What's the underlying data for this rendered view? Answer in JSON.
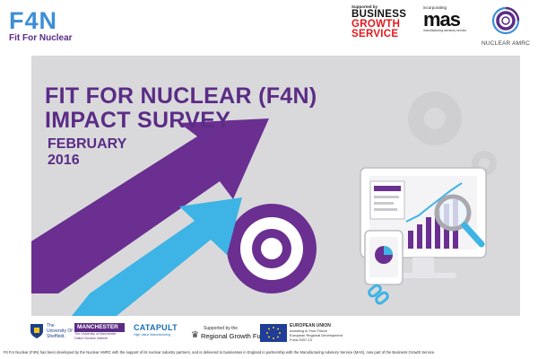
{
  "header": {
    "f4n_logo": {
      "mark": "F4N",
      "subtitle": "Fit For Nuclear"
    },
    "bgs_logo": {
      "supported_by": "Supported by",
      "line1": "BUSINESS",
      "line2": "GROWTH",
      "line3": "SERVICE"
    },
    "mas_logo": {
      "incorporating": "incorporating",
      "word": "mas",
      "tagline": "manufacturing advisory service"
    },
    "amrc_logo": {
      "text": "NUCLEAR AMRC",
      "icon": "target-ring-icon"
    }
  },
  "banner": {
    "title_line1": "FIT FOR NUCLEAR (F4N)",
    "title_line2": "IMPACT SURVEY",
    "date_line1": "FEBRUARY",
    "date_line2": "2016",
    "colors": {
      "purple": "#5b2c86",
      "blue": "#3db4e5",
      "background": "#d9d9db"
    }
  },
  "partners": {
    "sheffield": "The University Of Sheffield.",
    "manchester": "MANCHESTER",
    "manchester_sub": "The University of Manchester Dalton Nuclear Institute",
    "catapult": "CATAPULT",
    "catapult_sub": "High Value Manufacturing",
    "rgf_top": "Supported by the",
    "rgf_main": "Regional Growth Fund",
    "eu_line1": "EUROPEAN UNION",
    "eu_line2": "Investing in Your Future",
    "eu_line3": "European Regional Development Fund 2007-13"
  },
  "footer": {
    "text": "Fit For Nuclear (F4N) has been developed by the Nuclear AMRC with the support of its nuclear industry partners, and is delivered to businesses in England in partnership with the Manufacturing Advisory Service (MAS), now part of the Business Growth Service."
  }
}
